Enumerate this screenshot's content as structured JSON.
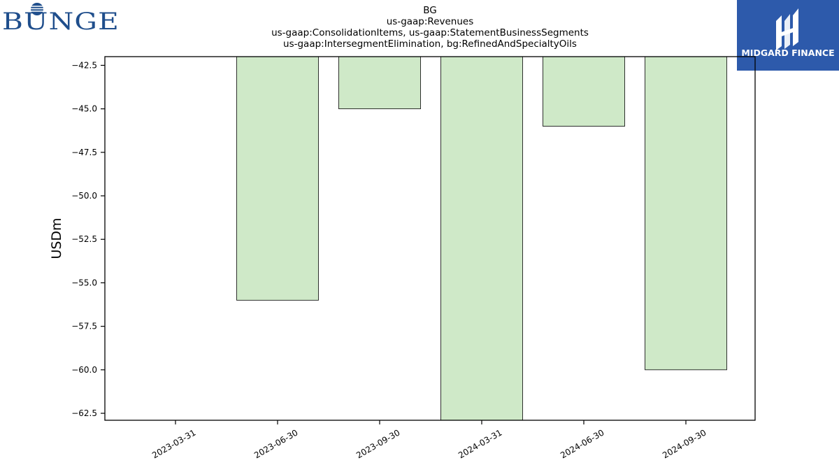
{
  "brand": {
    "left_logo_text": "BUNGE",
    "right_logo_text": "MIDGARD FINANCE",
    "colors": {
      "bunge_blue": "#1f4e8c",
      "midgard_blue": "#2d5aab",
      "bar_fill": "#cfe9c8"
    }
  },
  "chart_data": {
    "type": "bar",
    "title_lines": [
      "BG",
      "us-gaap:Revenues",
      "us-gaap:ConsolidationItems, us-gaap:StatementBusinessSegments",
      "us-gaap:IntersegmentElimination, bg:RefinedAndSpecialtyOils"
    ],
    "xlabel": "",
    "ylabel": "USDm",
    "categories": [
      "2023-03-31",
      "2023-06-30",
      "2023-09-30",
      "2024-03-31",
      "2024-06-30",
      "2024-09-30"
    ],
    "values": [
      -42,
      -56,
      -45,
      -63,
      -46,
      -60
    ],
    "ylim": [
      -62.9,
      -42
    ],
    "yticks": [
      -42.5,
      -45.0,
      -47.5,
      -50.0,
      -52.5,
      -55.0,
      -57.5,
      -60.0,
      -62.5
    ],
    "ytick_labels": [
      "−42.5",
      "−45.0",
      "−47.5",
      "−50.0",
      "−52.5",
      "−55.0",
      "−57.5",
      "−60.0",
      "−62.5"
    ],
    "grid": false,
    "legend": "none"
  }
}
